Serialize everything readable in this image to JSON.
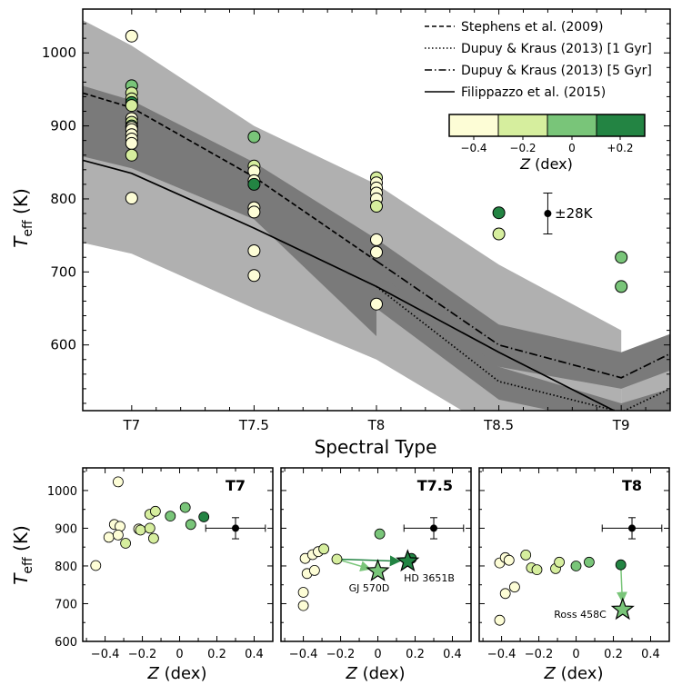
{
  "colors": {
    "band_outer": "#b0b0b0",
    "band_inner": "#7a7a7a",
    "z_m04": "#fdfdd6",
    "z_m02": "#d6ee9e",
    "z_0": "#79c579",
    "z_p02": "#238443",
    "star_light": "#79c579",
    "star_dark": "#238443"
  },
  "chart_data": [
    {
      "id": "main",
      "type": "scatter",
      "xlabel": "Spectral Type",
      "ylabel": "T_eff (K)",
      "ylabel_main": "T",
      "ylabel_sub": "eff",
      "ylabel_unit": " (K)",
      "x_categories": [
        {
          "label": "T7",
          "value": 7.0
        },
        {
          "label": "T7.5",
          "value": 7.5
        },
        {
          "label": "T8",
          "value": 8.0
        },
        {
          "label": "T8.5",
          "value": 8.5
        },
        {
          "label": "T9",
          "value": 9.0
        }
      ],
      "xlim": [
        6.8,
        9.2
      ],
      "ylim": [
        510,
        1060
      ],
      "yticks": [
        600,
        700,
        800,
        900,
        1000
      ],
      "yticklabels": [
        "600",
        "700",
        "800",
        "900",
        "1000"
      ],
      "legend": {
        "placement": "top-right",
        "entries": [
          {
            "label": "Stephens et al. (2009)",
            "style": "dashed"
          },
          {
            "label": "Dupuy & Kraus (2013) [1 Gyr]",
            "style": "dotted"
          },
          {
            "label": "Dupuy & Kraus (2013) [5 Gyr]",
            "style": "dashdot"
          },
          {
            "label": "Filippazzo et al. (2015)",
            "style": "solid"
          }
        ]
      },
      "colorbar": {
        "label": "Z (dex)",
        "label_italic": "Z",
        "label_rest": " (dex)",
        "ticks": [
          "−0.4",
          "−0.2",
          "0",
          "+0.2"
        ]
      },
      "error_annotation": {
        "label": "±28K",
        "x": 8.7,
        "y": 780,
        "err": 28
      },
      "relations": {
        "stephens": {
          "x": [
            6.8,
            7.0,
            7.5,
            8.0
          ],
          "y": [
            945,
            925,
            830,
            715
          ]
        },
        "dk_1gyr": {
          "x": [
            8.0,
            8.5,
            9.0,
            9.2
          ],
          "y": [
            680,
            550,
            508,
            540
          ]
        },
        "dk_5gyr": {
          "x": [
            8.0,
            8.5,
            9.0,
            9.2
          ],
          "y": [
            715,
            600,
            555,
            588
          ]
        },
        "filippazzo": {
          "x": [
            6.8,
            7.0,
            7.5,
            8.0,
            8.5,
            9.0
          ],
          "y": [
            853,
            835,
            760,
            680,
            590,
            505
          ]
        }
      },
      "bands": {
        "outer": [
          {
            "x": [
              6.8,
              7.0,
              7.5,
              8.0
            ],
            "upper": [
              1045,
              1010,
              900,
              820
            ],
            "lower": [
              838,
              822,
              742,
              635
            ]
          },
          {
            "x": [
              8.0,
              8.5,
              9.0
            ],
            "upper": [
              820,
              710,
              620
            ],
            "lower": [
              710,
              580,
              480
            ]
          },
          {
            "x": [
              9.0,
              9.2
            ],
            "upper": [
              588,
              612
            ],
            "lower": [
              480,
              500
            ]
          },
          {
            "x": [
              6.8,
              7.0,
              7.5,
              8.0,
              8.5,
              9.0
            ],
            "upper": [
              950,
              930,
              845,
              760,
              660,
              560
            ],
            "lower": [
              740,
              725,
              650,
              580,
              480,
              400
            ]
          }
        ],
        "inner": [
          {
            "x": [
              6.8,
              7.0,
              7.5,
              8.0
            ],
            "upper": [
              955,
              935,
              850,
              745
            ],
            "lower": [
              858,
              842,
              772,
              612
            ]
          },
          {
            "x": [
              8.0,
              8.5,
              9.0,
              9.2
            ],
            "upper": [
              745,
              628,
              590,
              615
            ],
            "lower": [
              680,
              570,
              540,
              565
            ]
          },
          {
            "x": [
              8.0,
              8.5,
              9.0,
              9.2
            ],
            "upper": [
              700,
              570,
              520,
              540
            ],
            "lower": [
              650,
              525,
              490,
              505
            ]
          }
        ]
      },
      "points": [
        {
          "x": 7.0,
          "y": 1023,
          "z": -0.4
        },
        {
          "x": 7.0,
          "y": 955,
          "z": 0.0
        },
        {
          "x": 7.0,
          "y": 945,
          "z": -0.2
        },
        {
          "x": 7.0,
          "y": 937,
          "z": -0.2
        },
        {
          "x": 7.0,
          "y": 932,
          "z": 0.2
        },
        {
          "x": 7.0,
          "y": 928,
          "z": -0.2
        },
        {
          "x": 7.0,
          "y": 910,
          "z": -0.4
        },
        {
          "x": 7.0,
          "y": 905,
          "z": -0.2
        },
        {
          "x": 7.0,
          "y": 900,
          "z": 0.0
        },
        {
          "x": 7.0,
          "y": 898,
          "z": -0.4
        },
        {
          "x": 7.0,
          "y": 895,
          "z": -0.4
        },
        {
          "x": 7.0,
          "y": 888,
          "z": -0.4
        },
        {
          "x": 7.0,
          "y": 882,
          "z": -0.4
        },
        {
          "x": 7.0,
          "y": 876,
          "z": -0.4
        },
        {
          "x": 7.0,
          "y": 860,
          "z": -0.2
        },
        {
          "x": 7.0,
          "y": 801,
          "z": -0.4
        },
        {
          "x": 7.5,
          "y": 885,
          "z": 0.0
        },
        {
          "x": 7.5,
          "y": 845,
          "z": -0.2
        },
        {
          "x": 7.5,
          "y": 838,
          "z": -0.4
        },
        {
          "x": 7.5,
          "y": 825,
          "z": -0.4
        },
        {
          "x": 7.5,
          "y": 820,
          "z": 0.2
        },
        {
          "x": 7.5,
          "y": 788,
          "z": -0.4
        },
        {
          "x": 7.5,
          "y": 782,
          "z": -0.4
        },
        {
          "x": 7.5,
          "y": 729,
          "z": -0.4
        },
        {
          "x": 7.5,
          "y": 695,
          "z": -0.4
        },
        {
          "x": 8.0,
          "y": 829,
          "z": -0.2
        },
        {
          "x": 8.0,
          "y": 822,
          "z": -0.4
        },
        {
          "x": 8.0,
          "y": 815,
          "z": -0.4
        },
        {
          "x": 8.0,
          "y": 808,
          "z": -0.4
        },
        {
          "x": 8.0,
          "y": 800,
          "z": -0.4
        },
        {
          "x": 8.0,
          "y": 790,
          "z": -0.2
        },
        {
          "x": 8.0,
          "y": 744,
          "z": -0.4
        },
        {
          "x": 8.0,
          "y": 727,
          "z": -0.4
        },
        {
          "x": 8.0,
          "y": 656,
          "z": -0.4
        },
        {
          "x": 8.5,
          "y": 781,
          "z": 0.2
        },
        {
          "x": 8.5,
          "y": 752,
          "z": -0.2
        },
        {
          "x": 9.0,
          "y": 720,
          "z": 0.0
        },
        {
          "x": 9.0,
          "y": 680,
          "z": 0.0
        }
      ]
    },
    {
      "id": "t7",
      "type": "scatter",
      "title": "T7",
      "xlabel": "Z (dex)",
      "ylabel": "T_eff (K)",
      "xlim": [
        -0.52,
        0.5
      ],
      "ylim": [
        600,
        1060
      ],
      "xticks": [
        -0.4,
        -0.2,
        0,
        0.2,
        0.4
      ],
      "xticklabels": [
        "−0.4",
        "−0.2",
        "0",
        "0.2",
        "0.4"
      ],
      "yticks": [
        600,
        700,
        800,
        900,
        1000
      ],
      "yticklabels": [
        "600",
        "700",
        "800",
        "900",
        "1000"
      ],
      "errorbar": {
        "x": 0.3,
        "y": 900,
        "xerr": 0.16,
        "yerr": 28
      },
      "points": [
        {
          "x": -0.33,
          "y": 1023,
          "z": -0.4
        },
        {
          "x": -0.45,
          "y": 801,
          "z": -0.4
        },
        {
          "x": -0.38,
          "y": 876,
          "z": -0.4
        },
        {
          "x": -0.35,
          "y": 910,
          "z": -0.4
        },
        {
          "x": -0.32,
          "y": 905,
          "z": -0.4
        },
        {
          "x": -0.33,
          "y": 882,
          "z": -0.4
        },
        {
          "x": -0.29,
          "y": 860,
          "z": -0.2
        },
        {
          "x": -0.22,
          "y": 898,
          "z": -0.4
        },
        {
          "x": -0.21,
          "y": 895,
          "z": -0.2
        },
        {
          "x": -0.16,
          "y": 937,
          "z": -0.2
        },
        {
          "x": -0.16,
          "y": 900,
          "z": -0.2
        },
        {
          "x": -0.13,
          "y": 945,
          "z": -0.2
        },
        {
          "x": -0.14,
          "y": 873,
          "z": -0.2
        },
        {
          "x": -0.05,
          "y": 932,
          "z": 0.0
        },
        {
          "x": 0.03,
          "y": 955,
          "z": 0.0
        },
        {
          "x": 0.06,
          "y": 910,
          "z": 0.0
        },
        {
          "x": 0.13,
          "y": 930,
          "z": 0.2
        }
      ]
    },
    {
      "id": "t75",
      "type": "scatter",
      "title": "T7.5",
      "xlabel": "Z (dex)",
      "xlim": [
        -0.52,
        0.5
      ],
      "ylim": [
        600,
        1060
      ],
      "xticks": [
        -0.4,
        -0.2,
        0,
        0.2,
        0.4
      ],
      "xticklabels": [
        "−0.4",
        "−0.2",
        "0",
        "0.2",
        "0.4"
      ],
      "errorbar": {
        "x": 0.3,
        "y": 900,
        "xerr": 0.16,
        "yerr": 28
      },
      "points": [
        {
          "x": -0.4,
          "y": 730,
          "z": -0.4
        },
        {
          "x": -0.4,
          "y": 695,
          "z": -0.4
        },
        {
          "x": -0.39,
          "y": 820,
          "z": -0.4
        },
        {
          "x": -0.38,
          "y": 780,
          "z": -0.4
        },
        {
          "x": -0.35,
          "y": 830,
          "z": -0.4
        },
        {
          "x": -0.34,
          "y": 788,
          "z": -0.4
        },
        {
          "x": -0.32,
          "y": 838,
          "z": -0.4
        },
        {
          "x": -0.29,
          "y": 845,
          "z": -0.2
        },
        {
          "x": -0.22,
          "y": 818,
          "z": -0.2
        },
        {
          "x": 0.01,
          "y": 885,
          "z": 0.0
        },
        {
          "x": 0.18,
          "y": 820,
          "z": 0.2
        }
      ],
      "stars": [
        {
          "label": "GJ 570D",
          "x": 0.0,
          "y": 786,
          "z": 0.0,
          "from": {
            "x": -0.22,
            "y": 818
          }
        },
        {
          "label": "HD 3651B",
          "x": 0.16,
          "y": 812,
          "z": 0.2,
          "from": {
            "x": -0.22,
            "y": 818
          }
        }
      ]
    },
    {
      "id": "t8",
      "type": "scatter",
      "title": "T8",
      "xlabel": "Z (dex)",
      "xlim": [
        -0.52,
        0.5
      ],
      "ylim": [
        600,
        1060
      ],
      "xticks": [
        -0.4,
        -0.2,
        0,
        0.2,
        0.4
      ],
      "xticklabels": [
        "−0.4",
        "−0.2",
        "0",
        "0.2",
        "0.4"
      ],
      "errorbar": {
        "x": 0.3,
        "y": 900,
        "xerr": 0.16,
        "yerr": 28
      },
      "points": [
        {
          "x": -0.41,
          "y": 656,
          "z": -0.4
        },
        {
          "x": -0.41,
          "y": 808,
          "z": -0.4
        },
        {
          "x": -0.38,
          "y": 822,
          "z": -0.4
        },
        {
          "x": -0.38,
          "y": 727,
          "z": -0.4
        },
        {
          "x": -0.36,
          "y": 815,
          "z": -0.4
        },
        {
          "x": -0.33,
          "y": 744,
          "z": -0.4
        },
        {
          "x": -0.27,
          "y": 829,
          "z": -0.2
        },
        {
          "x": -0.24,
          "y": 795,
          "z": -0.2
        },
        {
          "x": -0.21,
          "y": 790,
          "z": -0.2
        },
        {
          "x": -0.11,
          "y": 793,
          "z": -0.2
        },
        {
          "x": -0.09,
          "y": 810,
          "z": -0.2
        },
        {
          "x": 0.0,
          "y": 800,
          "z": 0.0
        },
        {
          "x": 0.07,
          "y": 810,
          "z": 0.0
        },
        {
          "x": 0.24,
          "y": 803,
          "z": 0.2
        }
      ],
      "stars": [
        {
          "label": "Ross 458C",
          "x": 0.25,
          "y": 684,
          "z": 0.0,
          "from": {
            "x": 0.24,
            "y": 803
          }
        }
      ]
    }
  ]
}
